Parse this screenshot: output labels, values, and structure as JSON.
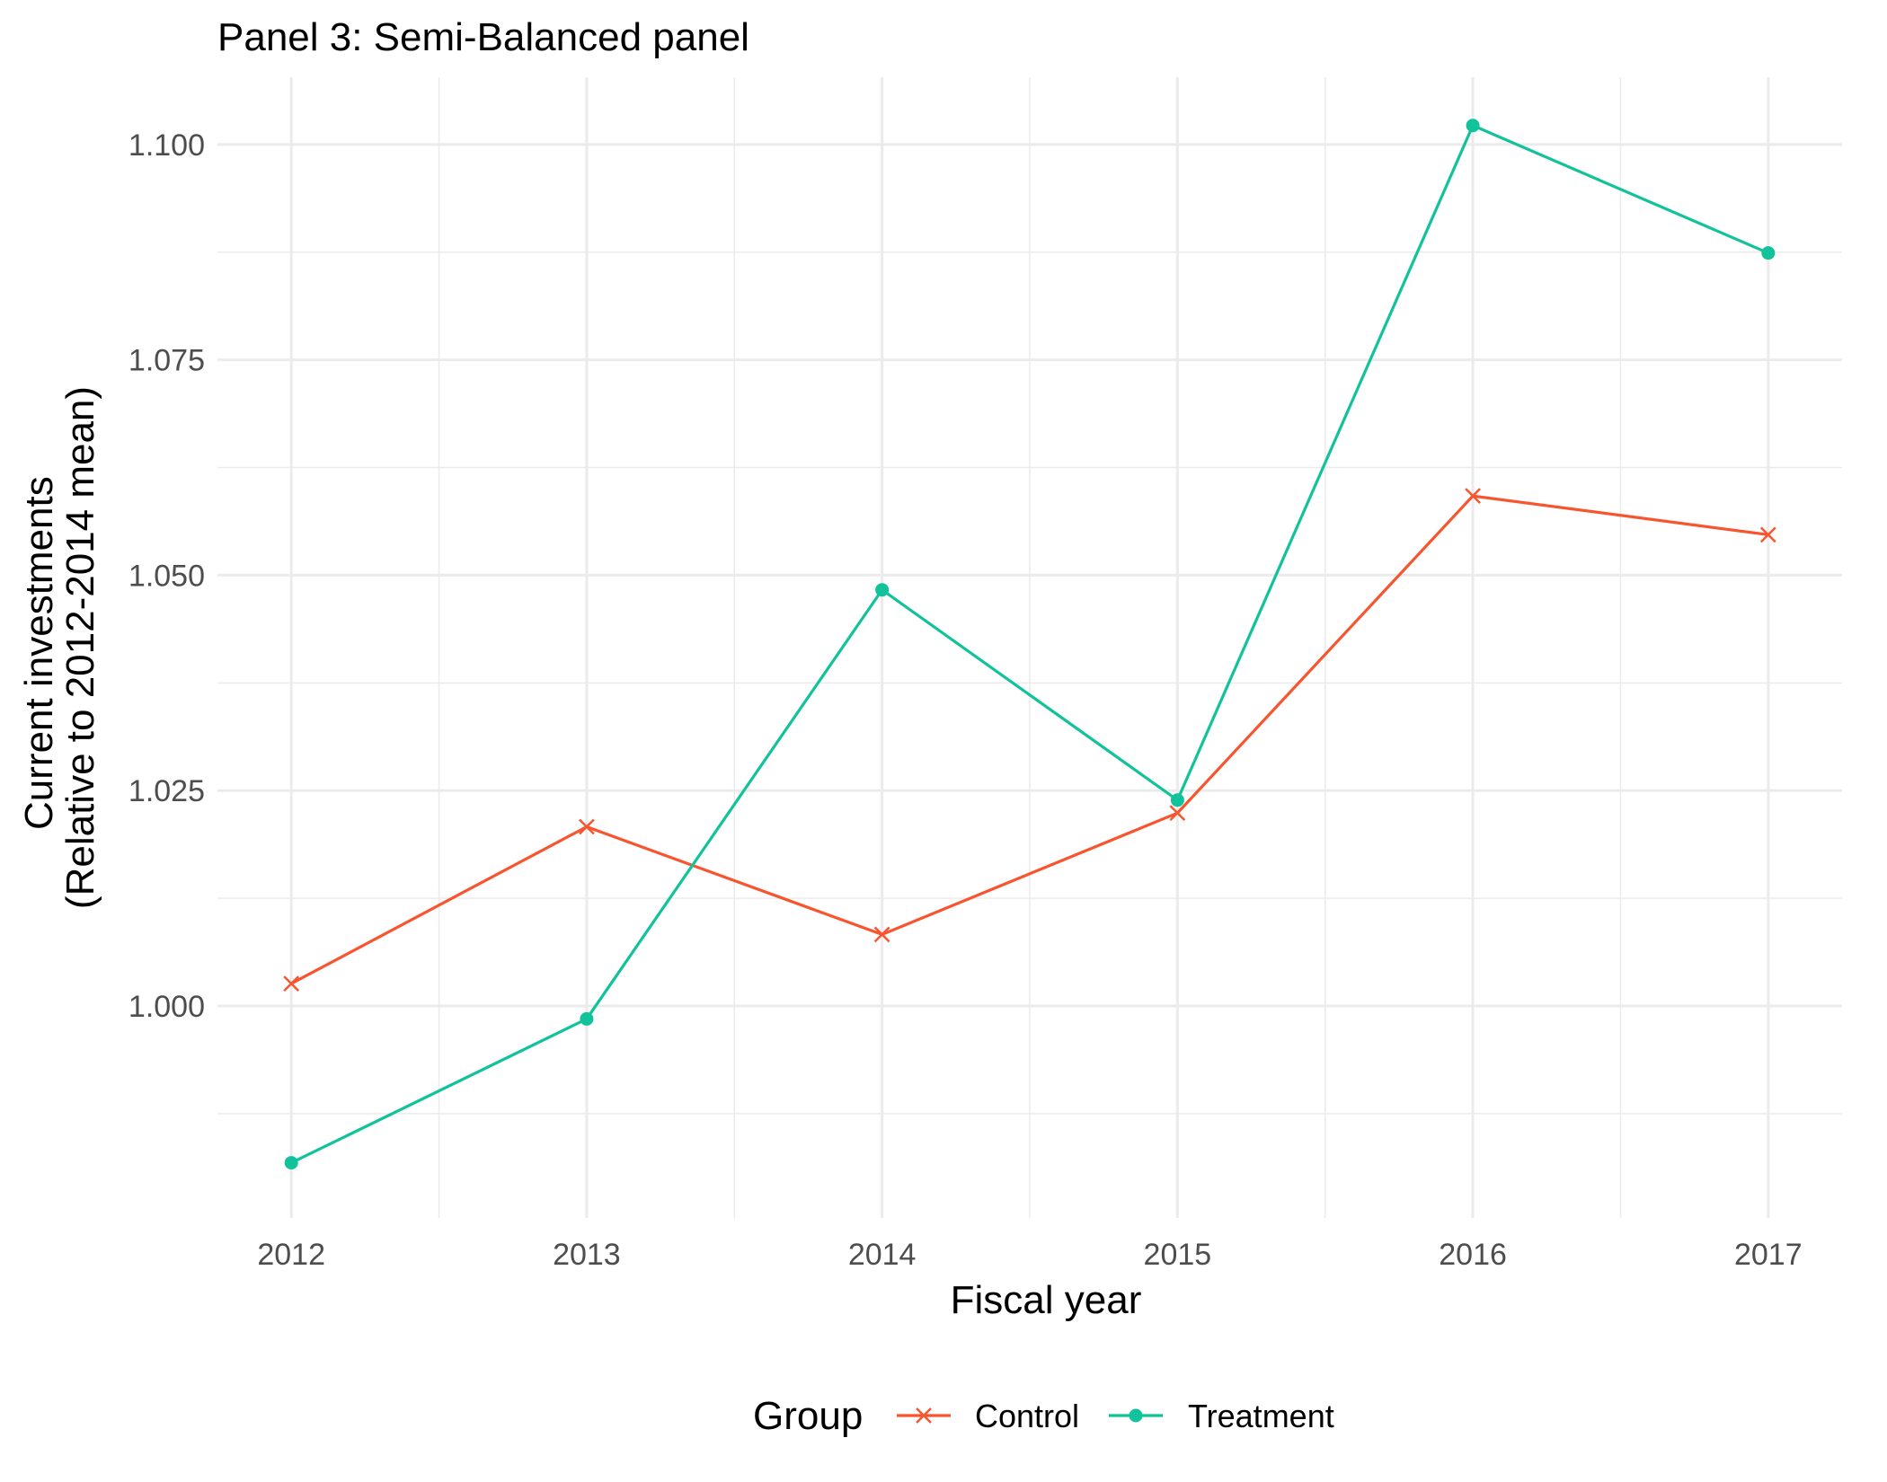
{
  "chart_data": {
    "type": "line",
    "title": "Panel 3: Semi-Balanced panel",
    "xlabel": "Fiscal year",
    "ylabel_lines": [
      "Current investments",
      "(Relative to 2012-2014 mean)"
    ],
    "x": [
      2012,
      2013,
      2014,
      2015,
      2016,
      2017
    ],
    "x_tick_labels": [
      "2012",
      "2013",
      "2014",
      "2015",
      "2016",
      "2017"
    ],
    "y_ticks": [
      1.0,
      1.025,
      1.05,
      1.075,
      1.1
    ],
    "y_tick_labels": [
      "1.000",
      "1.025",
      "1.050",
      "1.075",
      "1.100"
    ],
    "xlim": [
      2011.75,
      2017.25
    ],
    "ylim": [
      0.9754,
      1.1078
    ],
    "grid": true,
    "legend": {
      "title": "Group",
      "position": "bottom"
    },
    "series": [
      {
        "name": "Control",
        "color": "#F8552F",
        "marker": "x",
        "values": [
          1.0026,
          1.0208,
          1.0083,
          1.0224,
          1.0592,
          1.0547
        ]
      },
      {
        "name": "Treatment",
        "color": "#12C29B",
        "marker": "circle",
        "values": [
          0.9818,
          0.9985,
          1.0483,
          1.0239,
          1.1022,
          1.0874
        ]
      }
    ]
  }
}
